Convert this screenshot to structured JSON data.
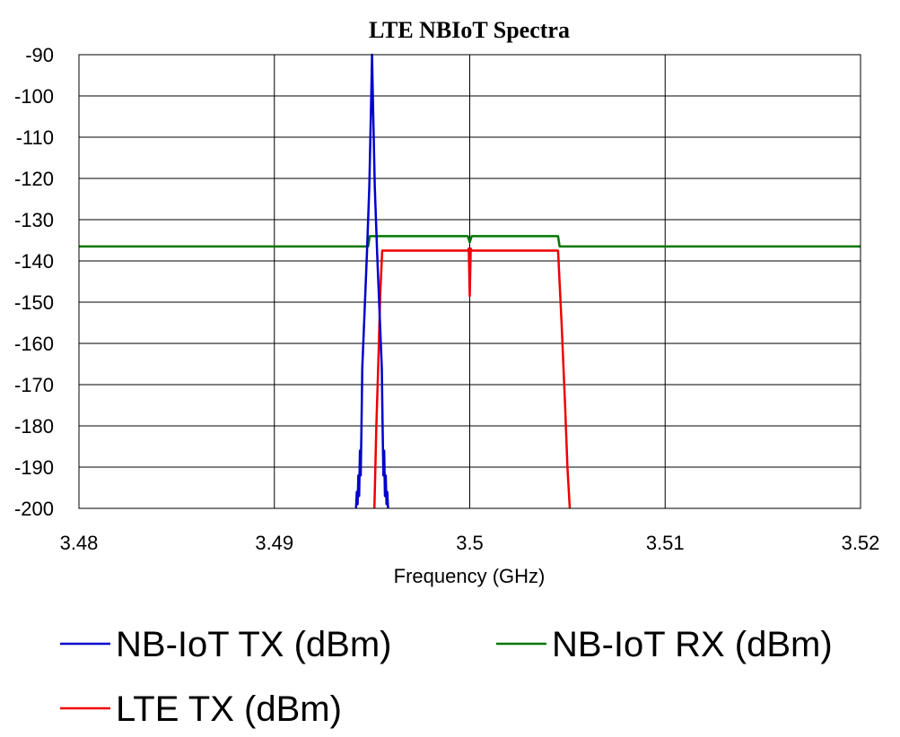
{
  "chart_data": {
    "type": "line",
    "title": "LTE NBIoT Spectra",
    "xlabel": "Frequency (GHz)",
    "ylabel": "",
    "xlim": [
      3.48,
      3.52
    ],
    "ylim": [
      -200,
      -90
    ],
    "x_ticks": [
      "3.48",
      "3.49",
      "3.5",
      "3.51",
      "3.52"
    ],
    "y_ticks": [
      "-90",
      "-100",
      "-110",
      "-120",
      "-130",
      "-140",
      "-150",
      "-160",
      "-170",
      "-180",
      "-190",
      "-200"
    ],
    "grid": true,
    "legend_position": "bottom",
    "series": [
      {
        "name": "NB-IoT TX (dBm)",
        "color": "#0000cc",
        "points": [
          [
            3.49418,
            -200
          ],
          [
            3.49422,
            -196
          ],
          [
            3.49426,
            -199
          ],
          [
            3.4943,
            -192
          ],
          [
            3.49434,
            -197
          ],
          [
            3.49438,
            -186
          ],
          [
            3.49442,
            -192
          ],
          [
            3.49446,
            -180
          ],
          [
            3.4945,
            -166
          ],
          [
            3.49462,
            -152
          ],
          [
            3.49474,
            -138
          ],
          [
            3.49486,
            -122
          ],
          [
            3.49496,
            -100
          ],
          [
            3.495,
            -90
          ],
          [
            3.49504,
            -100
          ],
          [
            3.49514,
            -122
          ],
          [
            3.49526,
            -138
          ],
          [
            3.49538,
            -152
          ],
          [
            3.4955,
            -166
          ],
          [
            3.49554,
            -180
          ],
          [
            3.49558,
            -192
          ],
          [
            3.49562,
            -186
          ],
          [
            3.49566,
            -197
          ],
          [
            3.4957,
            -192
          ],
          [
            3.49574,
            -199
          ],
          [
            3.49578,
            -196
          ],
          [
            3.49582,
            -200
          ]
        ]
      },
      {
        "name": "NB-IoT RX (dBm)",
        "color": "#007700",
        "points": [
          [
            3.48,
            -136.5
          ],
          [
            3.4948,
            -136.5
          ],
          [
            3.49488,
            -134
          ],
          [
            3.4999,
            -134
          ],
          [
            3.5,
            -135.5
          ],
          [
            3.5001,
            -134
          ],
          [
            3.50452,
            -134
          ],
          [
            3.5046,
            -136.5
          ],
          [
            3.52,
            -136.5
          ]
        ]
      },
      {
        "name": "LTE TX (dBm)",
        "color": "#ee0000",
        "points": [
          [
            3.49512,
            -200
          ],
          [
            3.49522,
            -180
          ],
          [
            3.49532,
            -165
          ],
          [
            3.49542,
            -148
          ],
          [
            3.49552,
            -137.5
          ],
          [
            3.4999,
            -137.5
          ],
          [
            3.49995,
            -137
          ],
          [
            3.5,
            -148.5
          ],
          [
            3.50005,
            -137
          ],
          [
            3.5001,
            -137.5
          ],
          [
            3.50452,
            -137.5
          ],
          [
            3.5047,
            -155
          ],
          [
            3.50488,
            -175
          ],
          [
            3.505,
            -190
          ],
          [
            3.50512,
            -200
          ]
        ]
      }
    ]
  }
}
